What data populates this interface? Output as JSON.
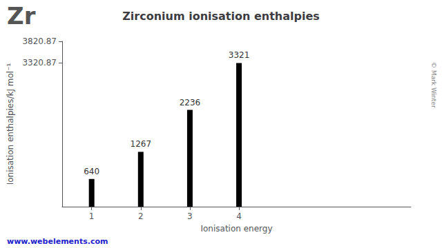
{
  "chart_data": {
    "type": "bar",
    "title": "Zirconium ionisation enthalpies",
    "x": [
      1,
      2,
      3,
      4
    ],
    "values": [
      640,
      1267,
      2236,
      3321
    ],
    "color": "#000000",
    "xlim": [
      0.4,
      7.5
    ],
    "xticks": [
      1,
      2,
      3,
      4
    ],
    "ylim": [
      0,
      3820.87
    ],
    "yticks": [
      3320.87,
      3820.87
    ],
    "xlabel": "Ionisation energy",
    "ylabel": "Ionisation enthalpies/kJ mol⁻¹",
    "data_labels": true,
    "grid": false,
    "annotations": [
      "Zr",
      "www.webelements.com",
      "© Mark Winter"
    ]
  }
}
